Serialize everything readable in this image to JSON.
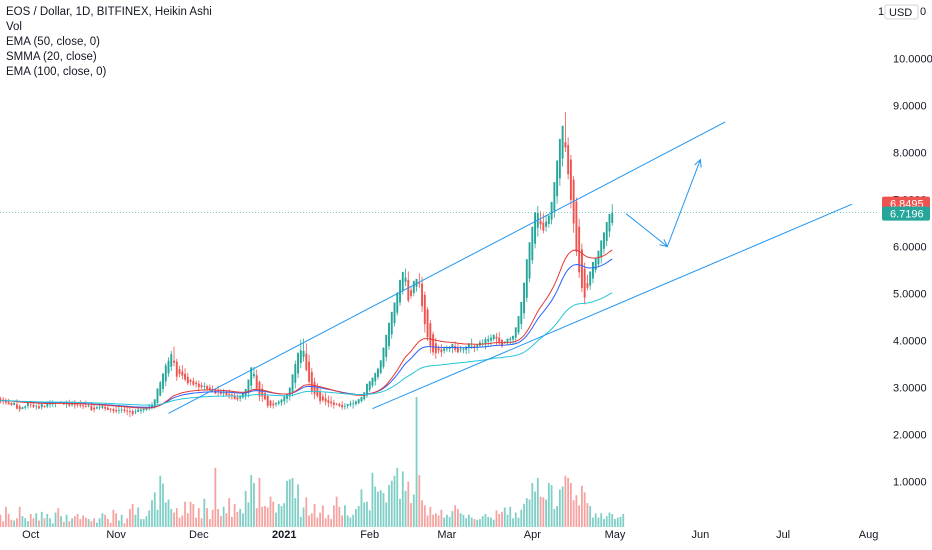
{
  "legend": {
    "title": "EOS / Dollar, 1D, BITFINEX, Heikin Ashi",
    "vol": "Vol",
    "ema50": "EMA (50, close, 0)",
    "smma20": "SMMA (20, close)",
    "ema100": "EMA (100, close, 0)"
  },
  "currency_label": "USD",
  "currency_top_prefix": "1",
  "currency_top_suffix": "0",
  "colors": {
    "up": "#26a69a",
    "down": "#ef5350",
    "up_volume": "#7fcfc6",
    "down_volume": "#f5a3a1",
    "ema50": "#2962ff",
    "smma20": "#e53935",
    "ema100": "#26c6da",
    "trendline": "#2196f3",
    "last_price_tag": "#26a69a",
    "prev_price_tag": "#ef5350"
  },
  "price_tags": {
    "last_close": "6.7196",
    "reference": "6.8495"
  },
  "chart_data": {
    "type": "candlestick",
    "title": "EOS / Dollar, 1D, BITFINEX, Heikin Ashi",
    "x_ticks": [
      "Oct",
      "Nov",
      "Dec",
      "2021",
      "Feb",
      "Mar",
      "Apr",
      "May",
      "Jun",
      "Jul",
      "Aug"
    ],
    "y_ticks": [
      "1.0000",
      "2.0000",
      "3.0000",
      "4.0000",
      "5.0000",
      "6.0000",
      "7.0000",
      "8.0000",
      "9.0000",
      "10.0000"
    ],
    "ylim": [
      0,
      11
    ],
    "xlim_dates": [
      "2020-09-20",
      "2021-08-25"
    ],
    "grid": false,
    "candles_compact": "2020-09-20:2.76,2.8,2.72,2.66|2.74,2.8,2.71,2.64|2.73,2.77,2.68,2.63|2.69,2.76,2.64,2.64|2.67,2.69,2.63,2.61|2.63,2.67,2.68,2.62|2.64,2.75,2.55,2.54|2.6,2.64,2.53,2.48|2.54,2.59,2.58,2.54|2.57,2.62,2.6,2.53|2.61,2.7,2.67,2.55|2.64,2.72,2.63,2.57|2.63,2.66,2.59,2.56|2.61,2.64,2.61,2.53|2.6,2.69,2.55,2.55|2.58,2.66,2.65,2.53|2.61,2.62,2.58,2.58|2.6,2.66,2.66,2.56|2.64,2.73,2.67,2.57|2.66,2.73,2.66,2.58|2.66,2.7,2.7,2.58|2.68,2.7,2.67,2.65|2.67,2.71,2.69,2.66|2.67,2.7,2.64,2.63|2.66,2.72,2.66,2.56|2.66,2.74,2.61,2.58|2.63,2.71,2.67,2.59|2.65,2.73,2.62,2.55|2.64,2.67,2.63,2.58|2.63,2.73,2.61,2.57|2.62,2.68,2.6,2.54|2.61,2.72,2.59,2.57|2.6,2.66,2.62,2.58|2.61,2.69,2.52,2.5|2.57,2.63,2.53,2.47|2.55,2.61,2.58,2.54|2.57,2.66,2.58,2.52|2.57,2.65,2.61,2.54|2.59,2.66,2.55,2.5|2.57,2.62,2.52,2.52|2.55,2.56,2.53,2.47|2.54,2.57,2.5,2.45|2.52,2.59,2.49,2.45|2.51,2.63,2.52,2.44|2.52,2.59,2.53,2.46|2.53,2.6,2.5,2.46|2.51,2.61,2.49,2.41|2.5,2.59,2.49,2.37|2.5,2.54,2.43,2.39|2.47,2.54,2.49,2.43|2.48,2.59,2.53,2.48|2.5,2.58,2.53,2.44|2.52,2.54,2.55,2.46|2.53,2.58,2.56,2.5|2.55,2.65,2.59,2.51|2.57,2.69,2.63,2.53|2.6,2.73,2.75,2.55|2.67,2.88,2.98,2.65|2.83,3.14,3.11,2.81|2.97,3.27,3.3,2.89|3.13,3.52,3.47,3.03|3.3,3.64,3.57,3.23|3.44,3.78,3.71,3.35|3.57,3.87,3.53,3.45|3.55,3.61,3.23,3.14|3.39,3.46,3.29,3.22|3.34,3.48,3.25,3.17|3.29,3.41,3.17,3.13|3.23,3.31,3.09,3.05|3.16,3.19,3.12,3.04|3.14,3.21,3.06,3.03|3.1,3.15,3.07,3.0|3.08,3.15,3.01,2.92|3.05,3.11,3.01,2.97|3.03,3.11,3.03,2.93|3.03,3.06,2.97,2.93|3.0,3.06,2.94,2.93|2.97,3.04,2.94,2.9|2.95,2.98,2.88,2.86|2.92,3.04,2.9,2.82|2.91,2.97,2.86,2.84|2.89,2.97,2.89,2.8|2.89,2.94,2.84,2.81|2.86,2.96,2.84,2.76|2.85,2.89,2.81,2.74|2.83,2.91,2.75,2.75|2.79,2.85,2.75,2.71|2.77,2.84,2.82,2.7|2.79,2.88,2.87,2.76|2.83,2.94,2.97,2.74|2.9,3.02,3.17,2.79|3.04,3.24,3.43,2.95|3.24,3.44,3.29,3.19|3.26,3.38,2.98,2.94|3.12,3.15,2.81,2.71|2.97,3.08,2.81,2.69|2.89,2.9,2.75,2.73|2.82,2.85,2.61,2.56|2.72,2.74,2.61,2.56|2.66,2.73,2.62,2.55|2.64,2.69,2.67,2.59|2.66,2.73,2.7,2.62|2.68,2.76,2.74,2.61|2.71,2.84,2.81,2.63|2.76,2.85,2.87,2.67|2.81,3.0,3.0,2.72|2.91,3.23,3.28,2.81|3.1,3.57,3.5,2.98|3.3,3.71,3.74,3.2|3.52,4.02,3.79,3.41|3.65,4.04,3.78,3.55|3.72,3.94,3.37,3.34|3.55,3.7,3.12,3.08|3.33,3.42,2.91,2.85|3.12,3.21,2.86,2.75|2.99,3.09,2.82,2.78|2.91,2.97,2.71,2.64|2.81,2.87,2.73,2.69|2.77,2.89,2.7,2.62|2.73,2.83,2.67,2.58|2.7,2.81,2.66,2.58|2.68,2.74,2.63,2.55|2.66,2.67,2.64,2.62|2.65,2.68,2.61,2.58|2.63,2.71,2.58,2.53|2.6,2.67,2.61,2.53|2.61,2.64,2.65,2.55|2.63,2.72,2.66,2.59|2.65,2.74,2.66,2.55|2.65,2.73,2.7,2.61|2.67,2.76,2.75,2.64|2.71,2.8,2.8,2.68|2.75,2.88,2.9,2.72|2.83,2.94,3.08,2.78|2.95,3.14,3.13,2.9|3.04,3.2,3.21,3.0|3.13,3.29,3.31,3.04|3.22,3.42,3.4,3.17|3.31,3.48,3.58,3.28|3.44,3.7,3.85,3.4|3.65,3.96,4.12,3.56|3.88,4.27,4.38,3.8|4.13,4.48,4.61,4.04|4.37,4.71,4.81,4.3|4.59,4.91,5.02,4.53|4.81,5.11,5.29,4.74|5.05,5.39,5.46,4.98|5.25,5.53,5.34,5.16|5.29,5.47,4.85,4.81|5.07,5.14,4.95,4.89|5.01,5.21,5.27,4.94|5.14,5.31,5.31,5.04|5.22,5.43,5.2,5.12|5.21,5.35,4.73,4.61|4.97,5.04,4.35,4.17|4.66,4.71,4.07,3.99|4.37,4.44,3.89,3.73|4.13,4.19,3.75,3.68|3.94,4.06,3.73,3.61|3.84,3.89,3.79,3.72|3.81,3.92,3.75,3.65|3.78,3.87,3.83,3.72|3.81,3.89,3.83,3.76|3.82,3.88,3.86,3.75|3.84,3.91,3.93,3.73|3.88,3.98,3.8,3.75|3.84,3.94,3.75,3.73|3.79,3.89,3.81,3.74|3.8,3.86,3.81,3.73|3.8,3.88,3.87,3.71|3.84,3.94,3.94,3.73|3.89,4.04,3.89,3.82|3.89,3.93,3.85,3.75|3.87,3.91,3.91,3.78|3.89,4.01,3.96,3.85|3.93,4.03,3.94,3.86|3.93,4.07,4.03,3.81|3.98,4.11,4.03,3.89|4.0,4.13,4.06,3.89|4.03,4.13,4.12,3.99|4.08,4.16,4.04,3.91|4.06,4.18,3.96,3.91|4.01,4.03,3.88,3.84|3.95,3.97,3.98,3.93|3.97,4.03,4.04,3.91|4.01,4.08,4.04,3.91|4.02,4.06,4.1,3.91|4.06,4.1,4.28,3.95|4.17,4.37,4.52,4.12|4.35,4.62,4.82,4.24|4.58,5.06,5.23,4.46|4.91,5.44,5.73,4.82|5.32,5.85,6.09,5.24|5.71,6.23,6.42,5.63|6.06,6.47,6.73,5.96|6.4,6.86,6.71,6.21|6.55,6.75,6.47,6.36|6.51,6.7,6.34,6.28|6.42,6.67,6.53,6.32|6.48,6.62,6.66,6.4|6.57,6.88,6.95,6.47|6.76,7.11,7.37,6.61|7.07,7.48,7.83,6.91|7.45,7.96,8.29,7.29|7.87,8.54,8.57,7.7|8.22,8.86,8.11,8.01|8.16,8.32,7.54,7.43|7.85,7.95,6.99,6.81|7.42,7.5,6.49,6.29|6.96,7.04,5.89,5.8|6.42,6.59,5.45,5.33|5.94,6.06,5.12,5.03|5.53,5.66,4.91,4.77|5.22,5.4,5.12,5.07|5.17,5.33,5.47,5.08|5.32,5.55,5.67,5.22|5.5,5.76,5.75,5.44|5.62,5.87,5.91,5.57|5.77,6.0,6.13,5.64|5.95,6.2,6.3,5.85|6.12,6.44,6.52,6.01|6.32,6.69,6.69,6.2|6.5,6.9,6.72,6.44",
    "volume_compact": "2020-09-20:17,8,28,18,10,9,12,28,15,12,8,18,12,19,9,21,12,18,12,5,20,26,15,7,17,8,12,15,18,11,16,13,11,8,12,6,12,19,17,11,6,24,19,9,17,5,12,25,32,17,27,11,11,15,23,37,48,24,71,60,34,38,25,20,26,13,16,35,19,35,32,13,26,12,39,26,11,24,82,25,15,28,19,40,14,32,21,25,19,50,34,72,61,26,68,28,29,27,42,35,20,32,29,33,64,66,68,40,59,14,27,41,16,19,32,13,20,30,12,17,11,30,42,28,16,30,16,13,17,25,29,52,34,35,23,75,56,49,51,47,34,58,64,71,82,39,77,50,63,33,45,180,72,37,30,16,28,17,19,16,24,13,17,14,22,30,25,19,17,12,17,13,11,10,11,15,18,14,13,10,23,18,21,27,17,28,12,20,13,24,32,40,38,61,49,68,42,41,38,61,58,25,29,52,56,71,68,61,37,44,30,57,48,33,29,13,19,13,19,11,15,20,18,11,13,14,18",
    "volume_unit": "relative",
    "overlays": [
      {
        "name": "EMA (50, close, 0)",
        "color": "#2962ff"
      },
      {
        "name": "SMMA (20, close)",
        "color": "#e53935"
      },
      {
        "name": "EMA (100, close, 0)",
        "color": "#26c6da"
      }
    ],
    "annotations": [
      {
        "type": "trendline",
        "from": [
          "2020-11-20",
          2.45
        ],
        "to": [
          "2021-06-10",
          8.65
        ]
      },
      {
        "type": "trendline",
        "from": [
          "2021-02-02",
          2.55
        ],
        "to": [
          "2021-07-26",
          6.9
        ]
      },
      {
        "type": "arrow",
        "from": [
          "2021-05-05",
          6.7
        ],
        "to": [
          "2021-05-20",
          6.0
        ]
      },
      {
        "type": "arrow",
        "from": [
          "2021-05-20",
          6.0
        ],
        "to": [
          "2021-06-01",
          7.85
        ]
      }
    ],
    "last_close": 6.7196,
    "reference_price": 6.8495
  }
}
